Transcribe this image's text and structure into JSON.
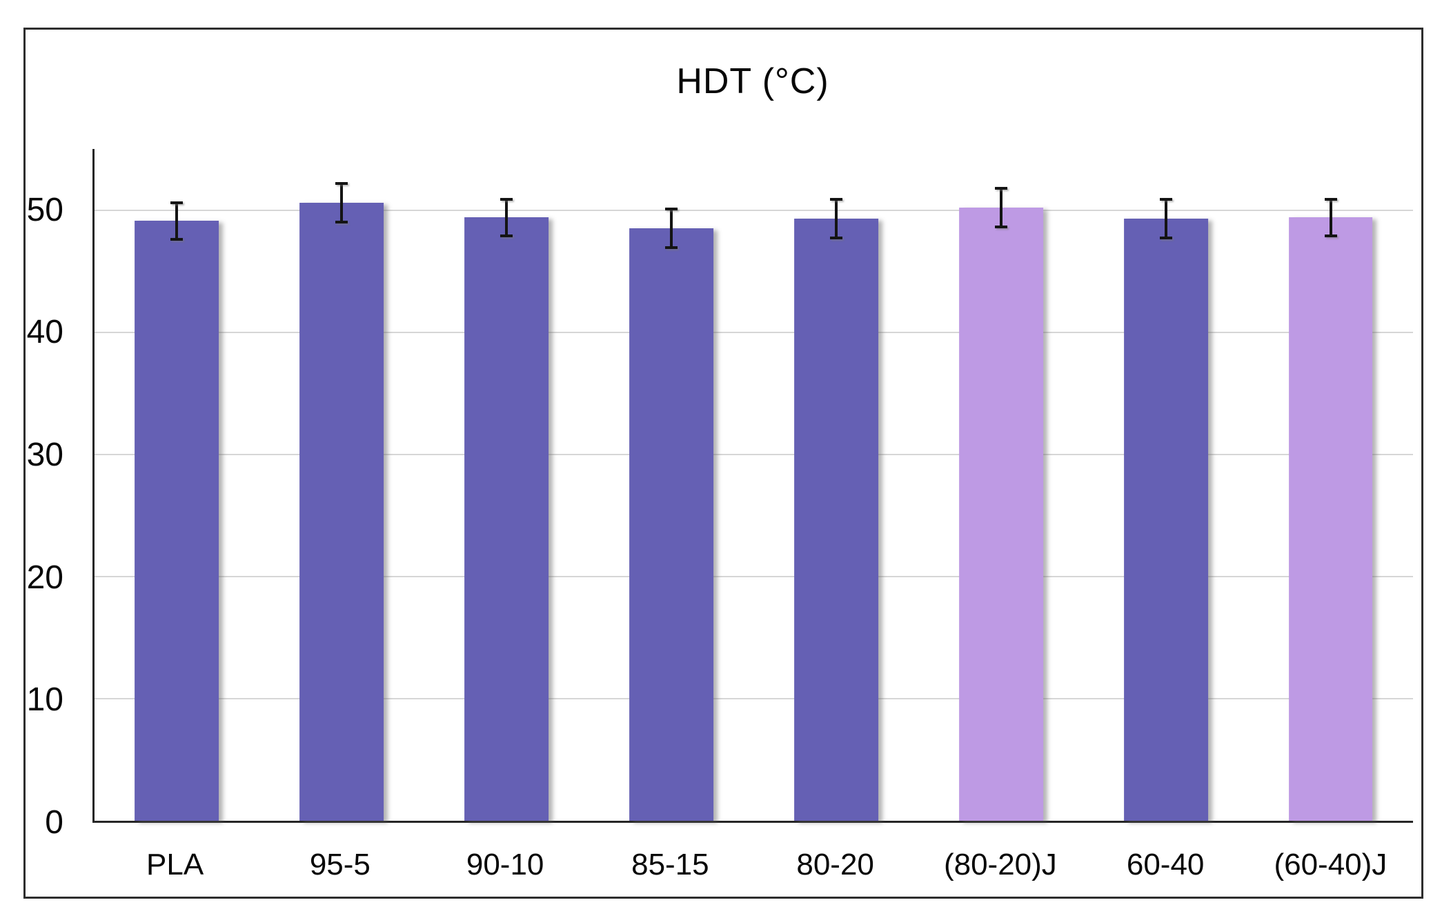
{
  "title": "HDT (°C)",
  "colors": {
    "bar_dark": "#6560b4",
    "bar_light": "#be9ae4",
    "gridline": "#d6d6d6",
    "axis": "#262626",
    "error_bar": "#141414",
    "frame_border": "#2e2e2e",
    "background": "#ffffff",
    "text": "#070707"
  },
  "chart_data": {
    "type": "bar",
    "title": "HDT (°C)",
    "xlabel": "",
    "ylabel": "",
    "categories": [
      "PLA",
      "95-5",
      "90-10",
      "85-15",
      "80-20",
      "(80-20)J",
      "60-40",
      "(60-40)J"
    ],
    "values": [
      49.1,
      50.6,
      49.4,
      48.5,
      49.3,
      50.2,
      49.3,
      49.4
    ],
    "errors": [
      1.6,
      1.7,
      1.6,
      1.7,
      1.7,
      1.7,
      1.7,
      1.6
    ],
    "bar_color_roles": [
      "dark",
      "dark",
      "dark",
      "dark",
      "dark",
      "light",
      "dark",
      "light"
    ],
    "ylim": [
      0,
      55
    ],
    "yticks": [
      0,
      10,
      20,
      30,
      40,
      50
    ],
    "grid": true,
    "legend": false,
    "legend_position": "none",
    "bar_width_fraction": 0.51
  }
}
